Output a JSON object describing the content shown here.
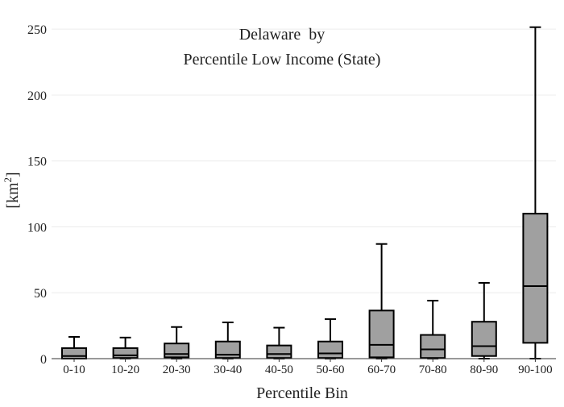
{
  "chart_data": {
    "type": "box",
    "title_line1": "Delaware  by",
    "title_line2": "Percentile Low Income (State)",
    "xlabel": "Percentile Bin",
    "ylabel": "[km",
    "ylabel_sup": "2",
    "ylabel_close": "]",
    "ylim": [
      0,
      255
    ],
    "yticks": [
      0,
      50,
      100,
      150,
      200,
      250
    ],
    "ytick_labels": [
      "0",
      "50",
      "100",
      "150",
      "200",
      "250"
    ],
    "grid": true,
    "box_color": "#a0a0a0",
    "line_color": "#000000",
    "categories": [
      "0-10",
      "10-20",
      "20-30",
      "30-40",
      "40-50",
      "50-60",
      "60-70",
      "70-80",
      "80-90",
      "90-100"
    ],
    "boxes": [
      {
        "whisker_low": 0,
        "q1": 0,
        "median": 2,
        "q3": 8,
        "whisker_high": 16.5
      },
      {
        "whisker_low": 0,
        "q1": 0.5,
        "median": 2.5,
        "q3": 8,
        "whisker_high": 16
      },
      {
        "whisker_low": 0,
        "q1": 1,
        "median": 3.5,
        "q3": 11.5,
        "whisker_high": 24
      },
      {
        "whisker_low": 0,
        "q1": 0.5,
        "median": 3,
        "q3": 13,
        "whisker_high": 27.5
      },
      {
        "whisker_low": 0,
        "q1": 0.5,
        "median": 3.5,
        "q3": 10,
        "whisker_high": 23.5
      },
      {
        "whisker_low": 0,
        "q1": 0.5,
        "median": 4,
        "q3": 13,
        "whisker_high": 30
      },
      {
        "whisker_low": 0,
        "q1": 1,
        "median": 10.5,
        "q3": 36.5,
        "whisker_high": 87
      },
      {
        "whisker_low": 0,
        "q1": 0.5,
        "median": 7,
        "q3": 18,
        "whisker_high": 44
      },
      {
        "whisker_low": 0,
        "q1": 2,
        "median": 9.5,
        "q3": 28,
        "whisker_high": 57.5
      },
      {
        "whisker_low": 0,
        "q1": 12,
        "median": 55,
        "q3": 110,
        "whisker_high": 251.5
      }
    ]
  }
}
